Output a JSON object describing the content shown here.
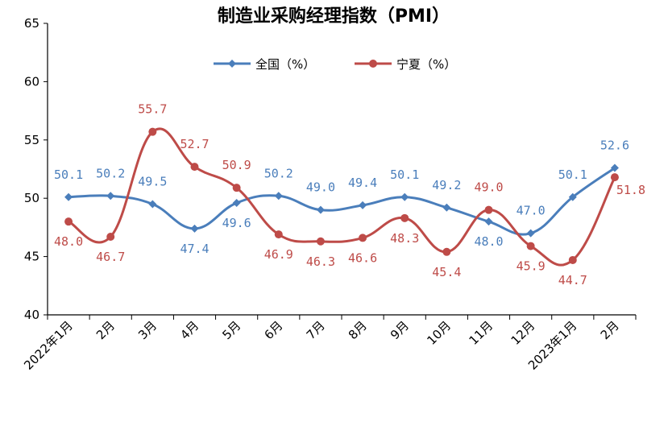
{
  "chart_data": {
    "type": "line",
    "title": "制造业采购经理指数（PMI）",
    "xlabel": "",
    "ylabel": "",
    "ylim": [
      40,
      65
    ],
    "yticks": [
      40,
      45,
      50,
      55,
      60,
      65
    ],
    "categories": [
      "2022年1月",
      "2月",
      "3月",
      "4月",
      "5月",
      "6月",
      "7月",
      "8月",
      "9月",
      "10月",
      "11月",
      "12月",
      "2023年1月",
      "2月"
    ],
    "legend_position": "top-center",
    "grid": false,
    "series": [
      {
        "name": "全国（%）",
        "color": "#4a7ebb",
        "marker": "diamond",
        "values": [
          50.1,
          50.2,
          49.5,
          47.4,
          49.6,
          50.2,
          49.0,
          49.4,
          50.1,
          49.2,
          48.0,
          47.0,
          50.1,
          52.6
        ],
        "labels": [
          "50.1",
          "50.2",
          "49.5",
          "47.4",
          "49.6",
          "50.2",
          "49.0",
          "49.4",
          "50.1",
          "49.2",
          "48.0",
          "47.0",
          "50.1",
          "52.6"
        ]
      },
      {
        "name": "宁夏（%）",
        "color": "#be4b48",
        "marker": "circle",
        "values": [
          48.0,
          46.7,
          55.7,
          52.7,
          50.9,
          46.9,
          46.3,
          46.6,
          48.3,
          45.4,
          49.0,
          45.9,
          44.7,
          51.8
        ],
        "labels": [
          "48.0",
          "46.7",
          "55.7",
          "52.7",
          "50.9",
          "46.9",
          "46.3",
          "46.6",
          "48.3",
          "45.4",
          "49.0",
          "45.9",
          "44.7",
          "51.8"
        ]
      }
    ]
  }
}
